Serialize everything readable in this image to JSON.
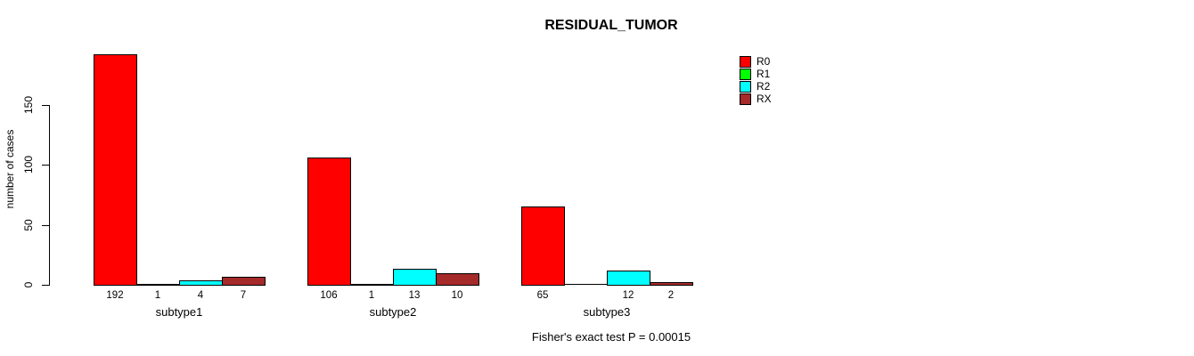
{
  "chart_data": {
    "type": "bar",
    "title": "RESIDUAL_TUMOR",
    "xlabel": "",
    "ylabel": "number of cases",
    "categories": [
      "subtype1",
      "subtype2",
      "subtype3"
    ],
    "series": [
      {
        "name": "R0",
        "color": "#FF0000",
        "values": [
          192,
          106,
          65
        ]
      },
      {
        "name": "R1",
        "color": "#00FF00",
        "values": [
          1,
          1,
          0
        ]
      },
      {
        "name": "R2",
        "color": "#00FFFF",
        "values": [
          4,
          13,
          12
        ]
      },
      {
        "name": "RX",
        "color": "#A52A2A",
        "values": [
          7,
          10,
          2
        ]
      }
    ],
    "bar_value_labels": [
      [
        "192",
        "1",
        "4",
        "7"
      ],
      [
        "106",
        "1",
        "13",
        "10"
      ],
      [
        "65",
        "",
        "12",
        "2"
      ]
    ],
    "yticks": [
      "0",
      "50",
      "100",
      "150"
    ],
    "ylim": [
      0,
      150
    ],
    "grid": false,
    "legend_position": "top-right",
    "footer": "Fisher's exact test P = 0.00015",
    "background_color": "#FFFFFF",
    "axis_color": "#000000"
  }
}
